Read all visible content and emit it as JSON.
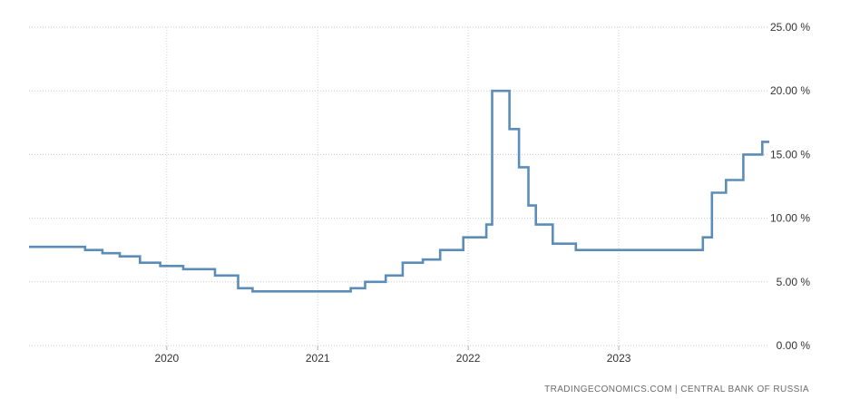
{
  "chart_data": {
    "type": "line",
    "step": true,
    "title": "",
    "xlabel": "",
    "ylabel": "",
    "x_type": "date",
    "xlim": [
      "2019-02-01",
      "2024-01-01"
    ],
    "ylim": [
      0,
      25
    ],
    "yticks": [
      "0.00 %",
      "5.00 %",
      "10.00 %",
      "15.00 %",
      "20.00 %",
      "25.00 %"
    ],
    "xticks": [
      "2020",
      "2021",
      "2022",
      "2023"
    ],
    "grid": true,
    "legend": "none",
    "line_color": "#5b8db8",
    "series": [
      {
        "x": [
          "2019-02-01",
          "2019-06-17",
          "2019-07-29",
          "2019-09-09",
          "2019-10-28",
          "2019-12-16",
          "2020-02-10",
          "2020-04-27",
          "2020-06-22",
          "2020-07-27",
          "2021-03-22",
          "2021-04-26",
          "2021-06-15",
          "2021-07-26",
          "2021-09-13",
          "2021-10-25",
          "2021-12-20",
          "2022-02-14",
          "2022-02-28",
          "2022-04-11",
          "2022-05-04",
          "2022-05-27",
          "2022-06-14",
          "2022-07-25",
          "2022-09-19",
          "2023-07-24",
          "2023-08-15",
          "2023-09-18",
          "2023-10-30",
          "2023-12-15",
          "2024-01-01"
        ],
        "y": [
          7.75,
          7.5,
          7.25,
          7.0,
          6.5,
          6.25,
          6.0,
          5.5,
          4.5,
          4.25,
          4.5,
          5.0,
          5.5,
          6.5,
          6.75,
          7.5,
          8.5,
          9.5,
          20.0,
          17.0,
          14.0,
          11.0,
          9.5,
          8.0,
          7.5,
          8.5,
          12.0,
          13.0,
          15.0,
          16.0,
          16.0
        ]
      }
    ]
  },
  "source_text": "TRADINGECONOMICS.COM  |  CENTRAL BANK OF RUSSIA"
}
